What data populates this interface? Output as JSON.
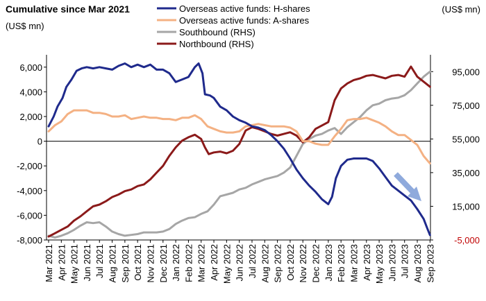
{
  "chart_data": {
    "type": "line",
    "title": "Cumulative since Mar 2021",
    "left_unit": "(US$ mn)",
    "right_unit": "(US$ mn)",
    "left_ylim": [
      -8000,
      7000
    ],
    "left_ticks": [
      -8000,
      -6000,
      -4000,
      -2000,
      0,
      2000,
      4000,
      6000
    ],
    "left_tick_labels": [
      "-8,000",
      "-6,000",
      "-4,000",
      "-2,000",
      "0",
      "2,000",
      "4,000",
      "6,000"
    ],
    "right_ylim": [
      -5000,
      105000
    ],
    "right_ticks": [
      -5000,
      15000,
      35000,
      55000,
      75000,
      95000
    ],
    "right_tick_labels": [
      "-5,000",
      "15,000",
      "35,000",
      "55,000",
      "75,000",
      "95,000"
    ],
    "x_range": [
      0,
      30
    ],
    "x_tick_labels": [
      "Mar 2021",
      "Apr 2021",
      "May 2021",
      "Jun 2021",
      "Jul 2021",
      "Aug 2021",
      "Sep 2021",
      "Oct 2021",
      "Nov 2021",
      "Dec 2021",
      "Jan 2022",
      "Feb 2022",
      "Mar 2022",
      "Apr 2022",
      "May 2022",
      "Jun 2022",
      "Jul 2022",
      "Aug 2022",
      "Sep 2022",
      "Oct 2022",
      "Nov 2022",
      "Dec 2022",
      "Jan 2023",
      "Feb 2023",
      "Mar 2023",
      "Apr 2023",
      "May 2023",
      "Jun 2023",
      "Jul 2023",
      "Aug 2023",
      "Sep 2023"
    ],
    "zero_line": true,
    "grid": false,
    "legend_position": "top-center",
    "colors": {
      "h_shares": "#1f2a8c",
      "a_shares": "#f4b183",
      "southbound": "#a6a6a6",
      "northbound": "#8b1a1a",
      "arrow": "#8faadc",
      "axis_right": "#c00000"
    },
    "series": [
      {
        "key": "h_shares",
        "name": "Overseas active funds: H-shares",
        "axis": "left",
        "points": [
          [
            0,
            1200
          ],
          [
            0.4,
            2000
          ],
          [
            0.7,
            2800
          ],
          [
            1.1,
            3500
          ],
          [
            1.4,
            4400
          ],
          [
            1.8,
            5000
          ],
          [
            2.2,
            5700
          ],
          [
            2.6,
            5900
          ],
          [
            3,
            6000
          ],
          [
            3.5,
            5900
          ],
          [
            4,
            6000
          ],
          [
            4.5,
            5900
          ],
          [
            5,
            5800
          ],
          [
            5.5,
            6100
          ],
          [
            6,
            6300
          ],
          [
            6.5,
            6000
          ],
          [
            7,
            6200
          ],
          [
            7.5,
            6000
          ],
          [
            8,
            6200
          ],
          [
            8.5,
            5800
          ],
          [
            9,
            5800
          ],
          [
            9.5,
            5500
          ],
          [
            10,
            4800
          ],
          [
            10.5,
            5000
          ],
          [
            11,
            5200
          ],
          [
            11.5,
            6000
          ],
          [
            11.8,
            6300
          ],
          [
            12.1,
            5500
          ],
          [
            12.3,
            3800
          ],
          [
            12.7,
            3700
          ],
          [
            13,
            3500
          ],
          [
            13.5,
            2800
          ],
          [
            14,
            2500
          ],
          [
            14.5,
            2000
          ],
          [
            15,
            1700
          ],
          [
            15.5,
            1500
          ],
          [
            16,
            1200
          ],
          [
            16.5,
            1100
          ],
          [
            17,
            900
          ],
          [
            17.5,
            500
          ],
          [
            18,
            0
          ],
          [
            18.5,
            -600
          ],
          [
            19,
            -1400
          ],
          [
            19.5,
            -2300
          ],
          [
            20,
            -3000
          ],
          [
            20.5,
            -3600
          ],
          [
            21,
            -4100
          ],
          [
            21.5,
            -4700
          ],
          [
            22,
            -5100
          ],
          [
            22.3,
            -4500
          ],
          [
            22.6,
            -3000
          ],
          [
            23,
            -2000
          ],
          [
            23.5,
            -1500
          ],
          [
            24,
            -1400
          ],
          [
            24.5,
            -1400
          ],
          [
            25,
            -1400
          ],
          [
            25.5,
            -1600
          ],
          [
            26,
            -2200
          ],
          [
            26.5,
            -2900
          ],
          [
            27,
            -3600
          ],
          [
            27.5,
            -4000
          ],
          [
            28,
            -4400
          ],
          [
            28.5,
            -4800
          ],
          [
            29,
            -5500
          ],
          [
            29.5,
            -6300
          ],
          [
            29.8,
            -7100
          ],
          [
            30,
            -7600
          ]
        ]
      },
      {
        "key": "a_shares",
        "name": "Overseas active funds: A-shares",
        "axis": "left",
        "points": [
          [
            0,
            800
          ],
          [
            0.5,
            1300
          ],
          [
            1,
            1600
          ],
          [
            1.5,
            2200
          ],
          [
            2,
            2500
          ],
          [
            2.5,
            2500
          ],
          [
            3,
            2500
          ],
          [
            3.5,
            2300
          ],
          [
            4,
            2300
          ],
          [
            4.5,
            2200
          ],
          [
            5,
            2000
          ],
          [
            5.5,
            2000
          ],
          [
            6,
            2100
          ],
          [
            6.5,
            1800
          ],
          [
            7,
            1900
          ],
          [
            7.5,
            2000
          ],
          [
            8,
            1900
          ],
          [
            8.5,
            1900
          ],
          [
            9,
            1800
          ],
          [
            9.5,
            1800
          ],
          [
            10,
            1700
          ],
          [
            10.5,
            1900
          ],
          [
            11,
            1900
          ],
          [
            11.5,
            2100
          ],
          [
            12,
            1800
          ],
          [
            12.5,
            1200
          ],
          [
            13,
            1000
          ],
          [
            13.5,
            800
          ],
          [
            14,
            700
          ],
          [
            14.5,
            700
          ],
          [
            15,
            800
          ],
          [
            15.5,
            1200
          ],
          [
            16,
            1300
          ],
          [
            16.5,
            1400
          ],
          [
            17,
            1300
          ],
          [
            17.5,
            1200
          ],
          [
            18,
            1200
          ],
          [
            18.5,
            1200
          ],
          [
            19,
            1100
          ],
          [
            19.5,
            800
          ],
          [
            20,
            0
          ],
          [
            20.5,
            0
          ],
          [
            21,
            -200
          ],
          [
            21.5,
            -300
          ],
          [
            22,
            -300
          ],
          [
            22.5,
            400
          ],
          [
            23,
            1000
          ],
          [
            23.5,
            1700
          ],
          [
            24,
            1800
          ],
          [
            24.5,
            1800
          ],
          [
            25,
            1900
          ],
          [
            25.5,
            1700
          ],
          [
            26,
            1500
          ],
          [
            26.5,
            1200
          ],
          [
            27,
            800
          ],
          [
            27.5,
            500
          ],
          [
            28,
            500
          ],
          [
            28.5,
            100
          ],
          [
            29,
            -300
          ],
          [
            29.5,
            -1200
          ],
          [
            30,
            -1800
          ]
        ]
      },
      {
        "key": "southbound",
        "name": "Southbound (RHS)",
        "axis": "right",
        "points": [
          [
            0,
            -2500
          ],
          [
            0.5,
            -3500
          ],
          [
            1,
            -2500
          ],
          [
            1.5,
            -1000
          ],
          [
            2,
            1000
          ],
          [
            2.5,
            3500
          ],
          [
            3,
            5500
          ],
          [
            3.5,
            5000
          ],
          [
            4,
            5500
          ],
          [
            4.5,
            3000
          ],
          [
            5,
            0
          ],
          [
            5.5,
            -1500
          ],
          [
            6,
            -2500
          ],
          [
            6.5,
            -2000
          ],
          [
            7,
            -1500
          ],
          [
            7.5,
            -500
          ],
          [
            8,
            -500
          ],
          [
            8.5,
            -500
          ],
          [
            9,
            0
          ],
          [
            9.5,
            1500
          ],
          [
            10,
            4500
          ],
          [
            10.5,
            6500
          ],
          [
            11,
            8000
          ],
          [
            11.5,
            8500
          ],
          [
            12,
            10500
          ],
          [
            12.5,
            12000
          ],
          [
            13,
            16000
          ],
          [
            13.5,
            21000
          ],
          [
            14,
            22000
          ],
          [
            14.5,
            23000
          ],
          [
            15,
            25000
          ],
          [
            15.5,
            26000
          ],
          [
            16,
            28000
          ],
          [
            16.5,
            29500
          ],
          [
            17,
            31000
          ],
          [
            17.5,
            32000
          ],
          [
            18,
            33000
          ],
          [
            18.5,
            35000
          ],
          [
            19,
            38000
          ],
          [
            19.5,
            45000
          ],
          [
            20,
            52000
          ],
          [
            20.5,
            55000
          ],
          [
            21,
            57000
          ],
          [
            21.5,
            58000
          ],
          [
            22,
            60000
          ],
          [
            22.5,
            61500
          ],
          [
            23,
            58000
          ],
          [
            23.5,
            62000
          ],
          [
            24,
            65000
          ],
          [
            24.5,
            68000
          ],
          [
            25,
            72000
          ],
          [
            25.5,
            75000
          ],
          [
            26,
            76000
          ],
          [
            26.5,
            78000
          ],
          [
            27,
            79000
          ],
          [
            27.5,
            79500
          ],
          [
            28,
            81000
          ],
          [
            28.5,
            84000
          ],
          [
            29,
            88000
          ],
          [
            29.5,
            92000
          ],
          [
            30,
            95000
          ]
        ]
      },
      {
        "key": "northbound",
        "name": "Northbound (RHS)",
        "axis": "right",
        "points": [
          [
            0,
            -3000
          ],
          [
            0.5,
            -1000
          ],
          [
            1,
            1000
          ],
          [
            1.5,
            3000
          ],
          [
            2,
            6500
          ],
          [
            2.5,
            9000
          ],
          [
            3,
            12000
          ],
          [
            3.5,
            15000
          ],
          [
            4,
            16000
          ],
          [
            4.5,
            18000
          ],
          [
            5,
            20500
          ],
          [
            5.5,
            22000
          ],
          [
            6,
            24000
          ],
          [
            6.5,
            25000
          ],
          [
            7,
            27000
          ],
          [
            7.5,
            28000
          ],
          [
            8,
            31000
          ],
          [
            8.5,
            35000
          ],
          [
            9,
            39000
          ],
          [
            9.5,
            45000
          ],
          [
            10,
            50000
          ],
          [
            10.5,
            54000
          ],
          [
            11,
            56000
          ],
          [
            11.5,
            57500
          ],
          [
            12,
            55000
          ],
          [
            12.3,
            50000
          ],
          [
            12.6,
            46000
          ],
          [
            13,
            47000
          ],
          [
            13.5,
            47500
          ],
          [
            14,
            46500
          ],
          [
            14.5,
            48000
          ],
          [
            15,
            52000
          ],
          [
            15.5,
            60000
          ],
          [
            16,
            62000
          ],
          [
            16.5,
            61000
          ],
          [
            17,
            59500
          ],
          [
            17.5,
            58000
          ],
          [
            18,
            57000
          ],
          [
            18.5,
            58000
          ],
          [
            19,
            59000
          ],
          [
            19.5,
            57000
          ],
          [
            20,
            53000
          ],
          [
            20.5,
            56000
          ],
          [
            21,
            61000
          ],
          [
            21.5,
            63000
          ],
          [
            22,
            65000
          ],
          [
            22.5,
            78000
          ],
          [
            23,
            85000
          ],
          [
            23.5,
            88000
          ],
          [
            24,
            90000
          ],
          [
            24.5,
            91000
          ],
          [
            25,
            92500
          ],
          [
            25.5,
            93000
          ],
          [
            26,
            92000
          ],
          [
            26.5,
            91000
          ],
          [
            27,
            92500
          ],
          [
            27.5,
            93000
          ],
          [
            28,
            92000
          ],
          [
            28.5,
            98000
          ],
          [
            29,
            92000
          ],
          [
            29.5,
            89000
          ],
          [
            30,
            86000
          ]
        ]
      }
    ]
  }
}
